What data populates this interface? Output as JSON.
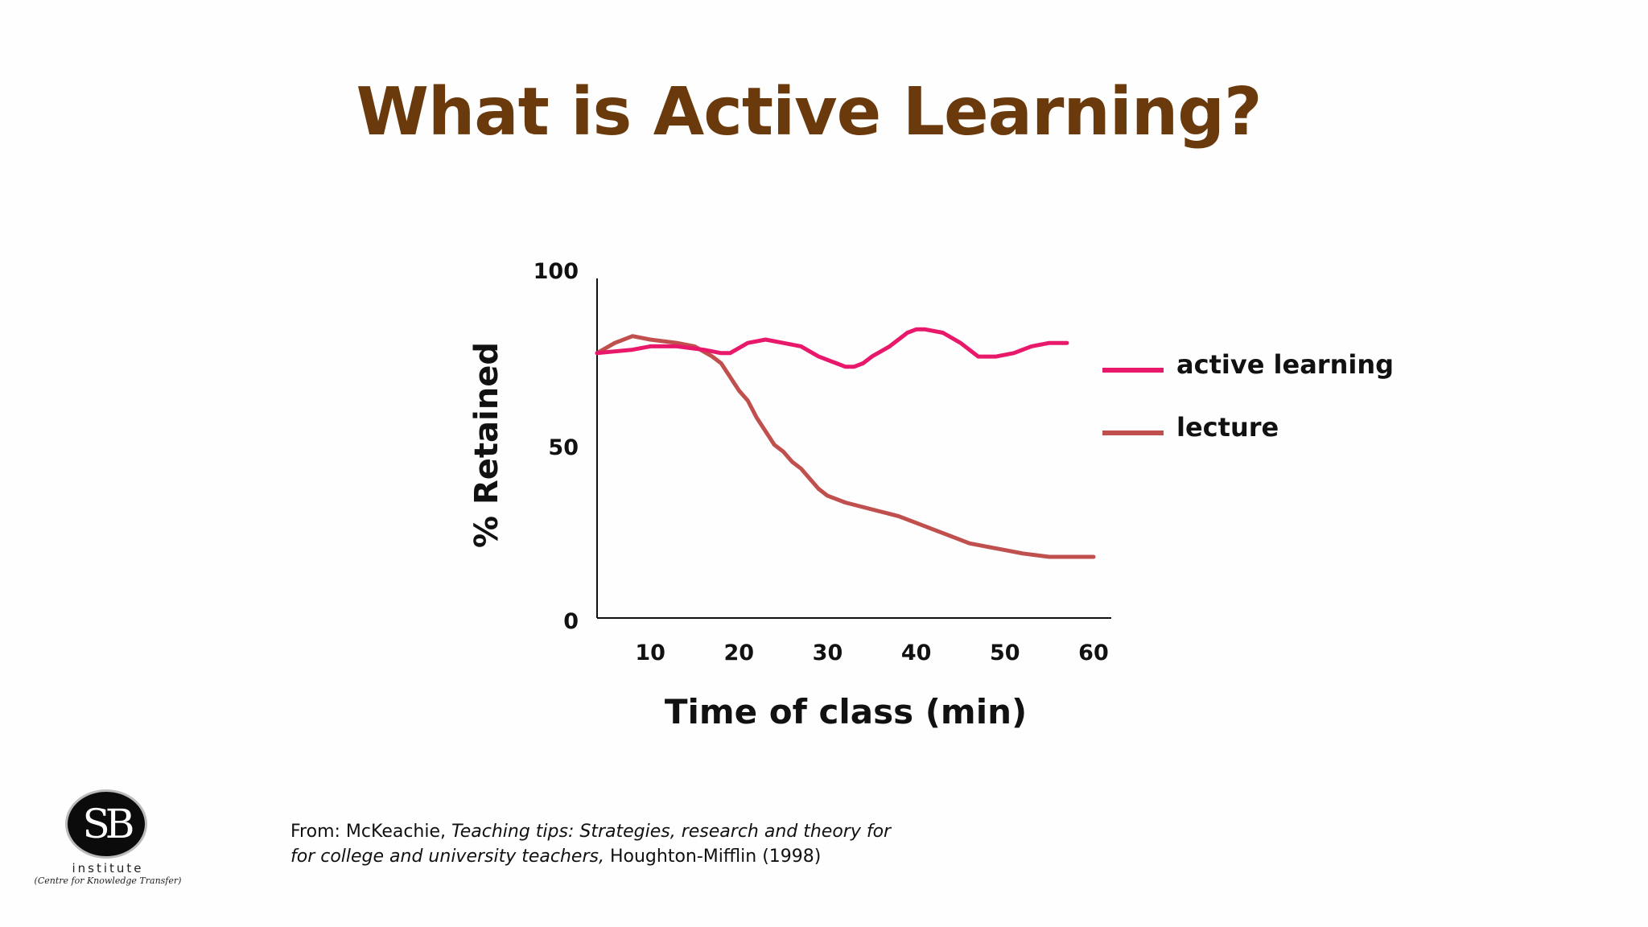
{
  "title": "What is Active Learning?",
  "chart_data": {
    "type": "line",
    "title": "",
    "xlabel": "Time of class (min)",
    "ylabel": "% Retained",
    "xlim": [
      4,
      62
    ],
    "ylim": [
      0,
      100
    ],
    "x_ticks": [
      "10",
      "20",
      "30",
      "40",
      "50",
      "60"
    ],
    "y_ticks": [
      "0",
      "50",
      "100"
    ],
    "legend_position": "right",
    "grid": false,
    "series": [
      {
        "name": "active learning",
        "color": "#e8186a",
        "x": [
          4,
          8,
          10,
          13,
          16,
          18,
          19,
          21,
          23,
          25,
          27,
          29,
          31,
          32,
          33,
          34,
          35,
          37,
          39,
          40,
          41,
          43,
          45,
          47,
          49,
          51,
          53,
          55,
          57
        ],
        "y": [
          78,
          79,
          80,
          80,
          79,
          78,
          78,
          81,
          82,
          81,
          80,
          77,
          75,
          74,
          74,
          75,
          77,
          80,
          84,
          85,
          85,
          84,
          81,
          77,
          77,
          78,
          80,
          81,
          81
        ]
      },
      {
        "name": "lecture",
        "color": "#c0504d",
        "x": [
          4,
          6,
          8,
          10,
          13,
          15,
          17,
          18,
          19,
          20,
          21,
          22,
          23,
          24,
          25,
          26,
          27,
          28,
          29,
          30,
          32,
          35,
          38,
          40,
          42,
          44,
          46,
          48,
          50,
          52,
          55,
          58,
          60
        ],
        "y": [
          78,
          81,
          83,
          82,
          81,
          80,
          77,
          75,
          71,
          67,
          64,
          59,
          55,
          51,
          49,
          46,
          44,
          41,
          38,
          36,
          34,
          32,
          30,
          28,
          26,
          24,
          22,
          21,
          20,
          19,
          18,
          18,
          18
        ]
      }
    ]
  },
  "citation": {
    "line1_prefix": "From: McKeachie, ",
    "line1_italic": "Teaching tips: Strategies, research and theory for",
    "line2_italic": "for college and university teachers,",
    "line2_suffix": " Houghton-Mifflin (1998)"
  },
  "logo": {
    "mark": "SB",
    "name": "institute",
    "tagline": "(Centre for Knowledge Transfer)"
  }
}
